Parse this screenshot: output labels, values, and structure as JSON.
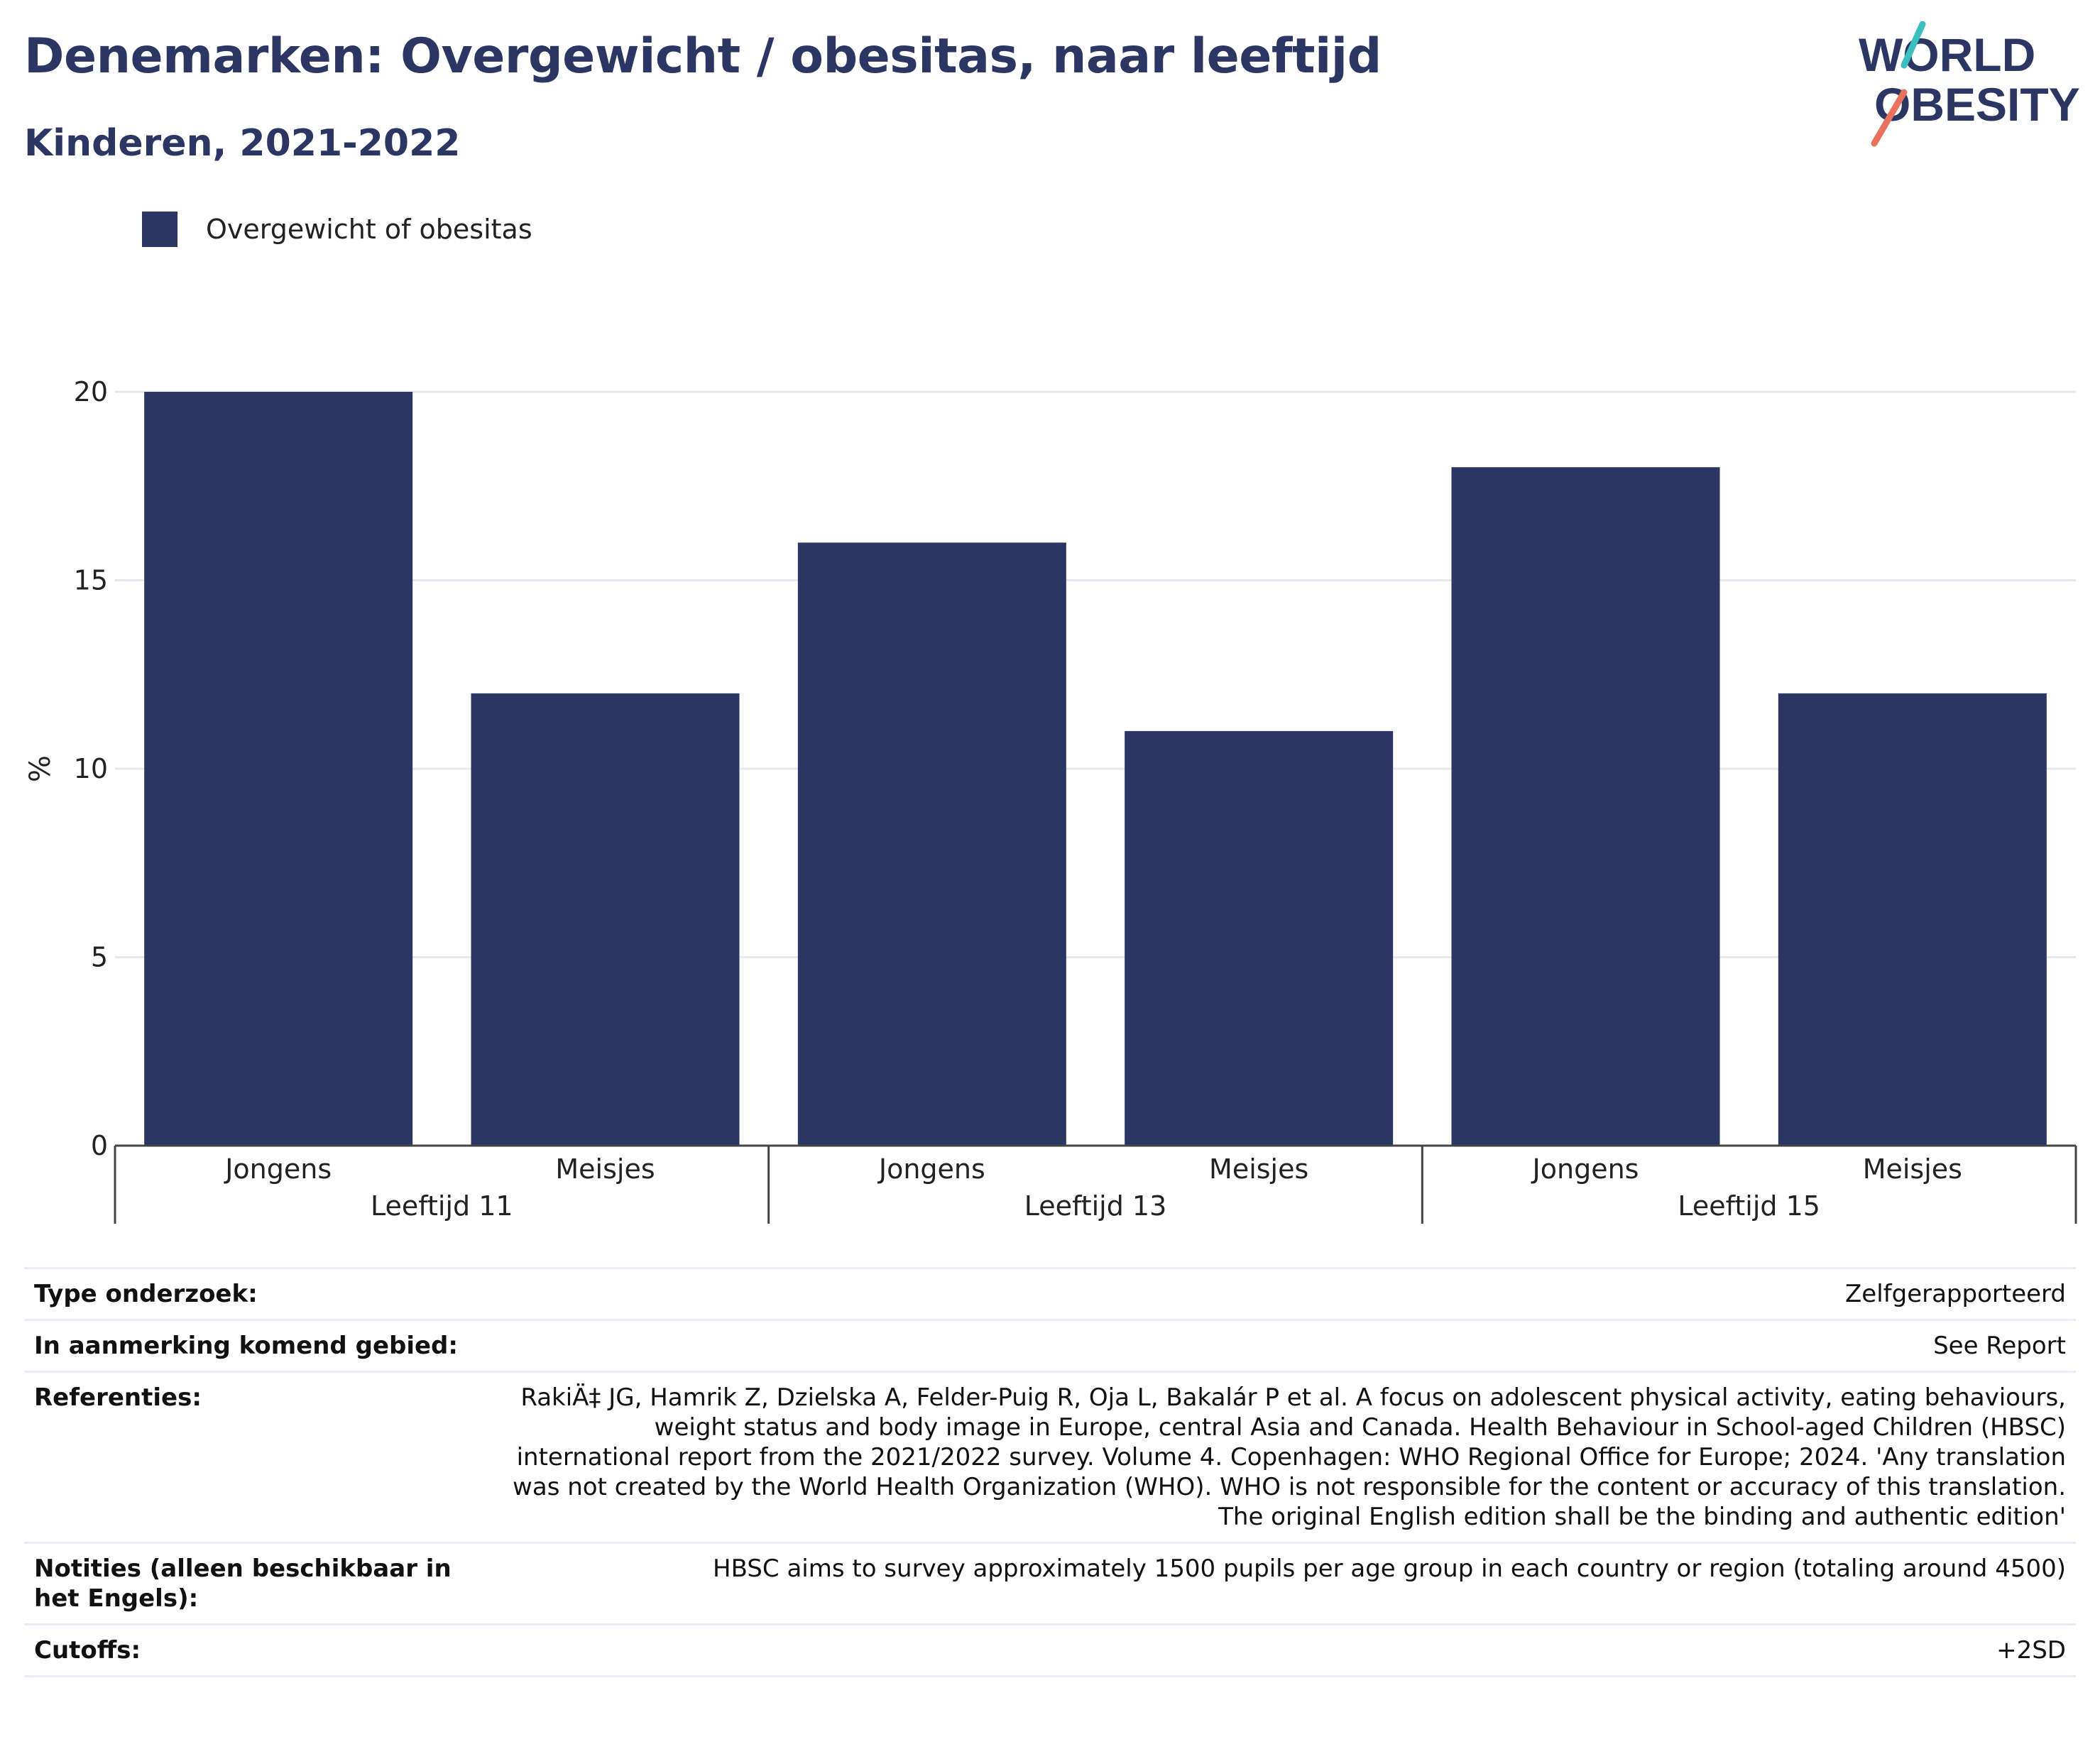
{
  "title": "Denemarken: Overgewicht / obesitas, naar leeftijd",
  "subtitle": "Kinderen, 2021-2022",
  "logo": {
    "line1": "WORLD",
    "line2": "OBESITY"
  },
  "colors": {
    "bar": "#2b3663",
    "title": "#2b3663",
    "logo_teal": "#3bbfbf",
    "logo_coral": "#e8725c",
    "grid": "#e6e8f0"
  },
  "chart_data": {
    "type": "bar",
    "ylabel": "%",
    "ylim": [
      0,
      20
    ],
    "yticks": [
      "0",
      "5",
      "10",
      "15",
      "20"
    ],
    "groups": [
      "Leeftijd 11",
      "Leeftijd 13",
      "Leeftijd 15"
    ],
    "categories": [
      "Jongens",
      "Meisjes",
      "Jongens",
      "Meisjes",
      "Jongens",
      "Meisjes"
    ],
    "series": [
      {
        "name": "Overgewicht of obesitas",
        "values": [
          20,
          12,
          16,
          11,
          18,
          12
        ]
      }
    ],
    "legend_position": "top-left",
    "grid": true
  },
  "info": [
    {
      "key": "Type onderzoek:",
      "value": "Zelfgerapporteerd"
    },
    {
      "key": "In aanmerking komend gebied:",
      "value": "See Report"
    },
    {
      "key": "Referenties:",
      "value": "RakiÄ‡ JG, Hamrik Z, Dzielska A, Felder-Puig R, Oja L, Bakalár P et al. A focus on adolescent physical activity, eating behaviours, weight status and body image in Europe, central Asia and Canada. Health Behaviour in School-aged Children (HBSC) international report from the 2021/2022 survey. Volume 4. Copenhagen: WHO Regional Office for Europe; 2024. 'Any translation was not created by the World Health Organization (WHO). WHO is not responsible for the content or accuracy of this translation. The original English edition shall be the binding and authentic edition'"
    },
    {
      "key": "Notities (alleen beschikbaar in het Engels):",
      "value": "HBSC aims to survey approximately 1500 pupils per age group in each country or region (totaling around 4500)"
    },
    {
      "key": "Cutoffs:",
      "value": "+2SD"
    }
  ]
}
